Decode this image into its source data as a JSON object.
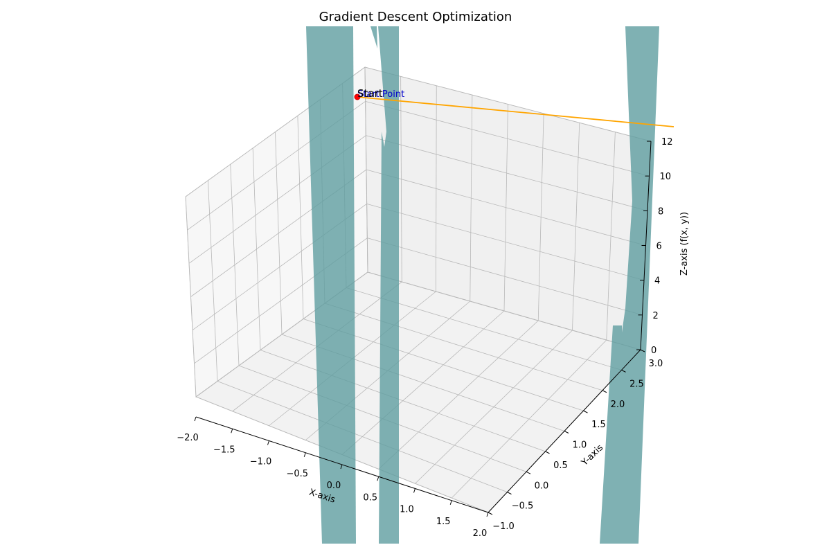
{
  "chart_data": {
    "type": "3d-surface",
    "title": "Gradient Descent Optimization",
    "xlabel": "X-axis",
    "ylabel": "Y-axis",
    "zlabel": "Z-axis (f(x, y))",
    "xlim": [
      -2,
      2
    ],
    "ylim": [
      -1,
      3
    ],
    "zlim": [
      0,
      12
    ],
    "x_ticks": [
      "−2.0",
      "−1.5",
      "−1.0",
      "−0.5",
      "0.0",
      "0.5",
      "1.0",
      "1.5",
      "2.0"
    ],
    "y_ticks": [
      "−1.0",
      "−0.5",
      "0.0",
      "0.5",
      "1.0",
      "1.5",
      "2.0",
      "2.5",
      "3.0"
    ],
    "z_ticks": [
      "0",
      "2",
      "4",
      "6",
      "8",
      "10",
      "12"
    ],
    "grid": true,
    "surface_color": "#5f9ea0",
    "path_color": "#ffa500",
    "start_point": {
      "marker_color": "#ff0000",
      "annotation": "Start",
      "label": "Start Point",
      "label_color": "#0000cc"
    }
  }
}
